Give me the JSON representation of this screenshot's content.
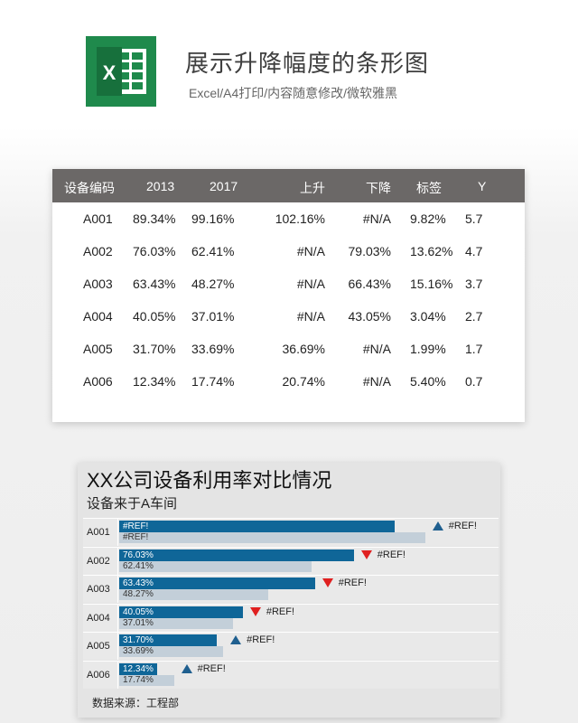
{
  "header": {
    "logo_letter": "X",
    "title": "展示升降幅度的条形图",
    "subtitle": "Excel/A4打印/内容随意修改/微软雅黑"
  },
  "colors": {
    "excel_green": "#1f8a4c",
    "table_header": "#6b6867",
    "bar_blue": "#0f6698",
    "bar_light": "#c3cfd9",
    "up_marker": "#1f5f8f",
    "down_marker": "#e02020"
  },
  "table": {
    "headers": [
      "设备编码",
      "2013",
      "2017",
      "上升",
      "下降",
      "标签",
      "Y"
    ],
    "rows": [
      [
        "A001",
        "89.34%",
        "99.16%",
        "102.16%",
        "#N/A",
        "9.82%",
        "5.7"
      ],
      [
        "A002",
        "76.03%",
        "62.41%",
        "#N/A",
        "79.03%",
        "13.62%",
        "4.7"
      ],
      [
        "A003",
        "63.43%",
        "48.27%",
        "#N/A",
        "66.43%",
        "15.16%",
        "3.7"
      ],
      [
        "A004",
        "40.05%",
        "37.01%",
        "#N/A",
        "43.05%",
        "3.04%",
        "2.7"
      ],
      [
        "A005",
        "31.70%",
        "33.69%",
        "36.69%",
        "#N/A",
        "1.99%",
        "1.7"
      ],
      [
        "A006",
        "12.34%",
        "17.74%",
        "20.74%",
        "#N/A",
        "5.40%",
        "0.7"
      ]
    ]
  },
  "chart": {
    "title": "XX公司设备利用率对比情况",
    "subtitle": "设备来于A车间",
    "source": "数据来源：工程部"
  },
  "chart_data": {
    "type": "bar",
    "orientation": "horizontal",
    "categories": [
      "A001",
      "A002",
      "A003",
      "A004",
      "A005",
      "A006"
    ],
    "series": [
      {
        "values": [
          89.34,
          76.03,
          63.43,
          40.05,
          31.7,
          12.34
        ],
        "labels": [
          "#REF!",
          "76.03%",
          "63.43%",
          "40.05%",
          "31.70%",
          "12.34%"
        ]
      },
      {
        "values": [
          99.16,
          62.41,
          48.27,
          37.01,
          33.69,
          17.74
        ],
        "labels": [
          "#REF!",
          "62.41%",
          "48.27%",
          "37.01%",
          "33.69%",
          "17.74%"
        ]
      }
    ],
    "markers": [
      {
        "direction": "up",
        "label": "#REF!"
      },
      {
        "direction": "down",
        "label": "#REF!"
      },
      {
        "direction": "down",
        "label": "#REF!"
      },
      {
        "direction": "down",
        "label": "#REF!"
      },
      {
        "direction": "up",
        "label": "#REF!"
      },
      {
        "direction": "up",
        "label": "#REF!"
      }
    ],
    "xlim": [
      0,
      120
    ]
  }
}
